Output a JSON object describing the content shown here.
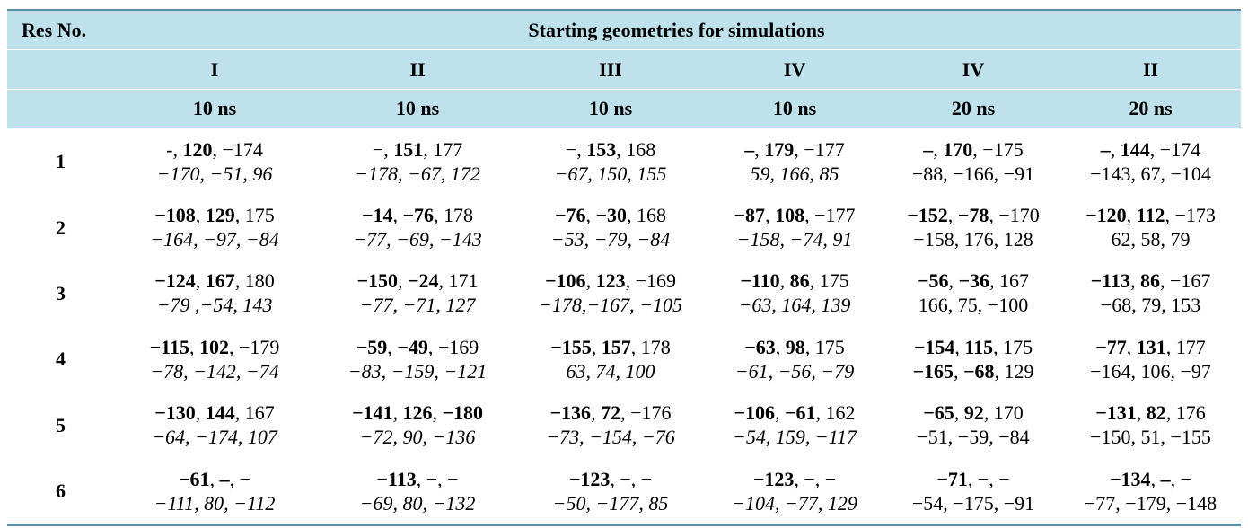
{
  "table": {
    "res_no_header": "Res No.",
    "title": "Starting geometries for simulations",
    "columns": [
      {
        "roman": "I",
        "time": "10 ns"
      },
      {
        "roman": "II",
        "time": "10 ns"
      },
      {
        "roman": "III",
        "time": "10 ns"
      },
      {
        "roman": "IV",
        "time": "10 ns"
      },
      {
        "roman": "IV",
        "time": "20 ns"
      },
      {
        "roman": "II",
        "time": "20 ns"
      }
    ],
    "rows": [
      {
        "res": "1",
        "cells": [
          {
            "line1": [
              [
                "-, ",
                false
              ],
              [
                "120",
                true
              ],
              [
                ", −174",
                false
              ]
            ],
            "line2": "−170, −51, 96",
            "italic": true
          },
          {
            "line1": [
              [
                "−, ",
                false
              ],
              [
                "151",
                true
              ],
              [
                ", 177",
                false
              ]
            ],
            "line2": "−178, −67, 172",
            "italic": true
          },
          {
            "line1": [
              [
                "−, ",
                false
              ],
              [
                "153",
                true
              ],
              [
                ", 168",
                false
              ]
            ],
            "line2": "−67, 150, 155",
            "italic": true
          },
          {
            "line1": [
              [
                "–",
                true
              ],
              [
                ", ",
                false
              ],
              [
                "179",
                true
              ],
              [
                ", −177",
                false
              ]
            ],
            "line2": "59, 166, 85",
            "italic": true
          },
          {
            "line1": [
              [
                "–",
                true
              ],
              [
                ", ",
                false
              ],
              [
                "170",
                true
              ],
              [
                ", −175",
                false
              ]
            ],
            "line2": "−88, −166, −91",
            "italic": false
          },
          {
            "line1": [
              [
                "–",
                true
              ],
              [
                ", ",
                false
              ],
              [
                "144",
                true
              ],
              [
                ", −174",
                false
              ]
            ],
            "line2": "−143, 67, −104",
            "italic": false
          }
        ]
      },
      {
        "res": "2",
        "cells": [
          {
            "line1": [
              [
                "−108",
                true
              ],
              [
                ", ",
                false
              ],
              [
                "129",
                true
              ],
              [
                ", 175",
                false
              ]
            ],
            "line2": "−164, −97, −84",
            "italic": true
          },
          {
            "line1": [
              [
                "−14",
                true
              ],
              [
                ", ",
                false
              ],
              [
                "−76",
                true
              ],
              [
                ", 178",
                false
              ]
            ],
            "line2": "−77, −69, −143",
            "italic": true
          },
          {
            "line1": [
              [
                "−76",
                true
              ],
              [
                ", ",
                false
              ],
              [
                "−30",
                true
              ],
              [
                ", 168",
                false
              ]
            ],
            "line2": "−53, −79, −84",
            "italic": true
          },
          {
            "line1": [
              [
                "−87",
                true
              ],
              [
                ", ",
                false
              ],
              [
                "108",
                true
              ],
              [
                ", −177",
                false
              ]
            ],
            "line2": "−158, −74, 91",
            "italic": true
          },
          {
            "line1": [
              [
                "−152",
                true
              ],
              [
                ", ",
                false
              ],
              [
                "−78",
                true
              ],
              [
                ", −170",
                false
              ]
            ],
            "line2": "−158, 176, 128",
            "italic": false
          },
          {
            "line1": [
              [
                "−120",
                true
              ],
              [
                ", ",
                false
              ],
              [
                "112",
                true
              ],
              [
                ", −173",
                false
              ]
            ],
            "line2": "62, 58, 79",
            "italic": false
          }
        ]
      },
      {
        "res": "3",
        "cells": [
          {
            "line1": [
              [
                "−124",
                true
              ],
              [
                ", ",
                false
              ],
              [
                "167",
                true
              ],
              [
                ", 180",
                false
              ]
            ],
            "line2": "−79 ,−54, 143",
            "italic": true
          },
          {
            "line1": [
              [
                "−150",
                true
              ],
              [
                ", ",
                false
              ],
              [
                "−24",
                true
              ],
              [
                ", 171",
                false
              ]
            ],
            "line2": "−77, −71, 127",
            "italic": true
          },
          {
            "line1": [
              [
                "−106",
                true
              ],
              [
                ", ",
                false
              ],
              [
                "123",
                true
              ],
              [
                ", −169",
                false
              ]
            ],
            "line2": "−178,−167, −105",
            "italic": true
          },
          {
            "line1": [
              [
                "−110",
                true
              ],
              [
                ", ",
                false
              ],
              [
                "86",
                true
              ],
              [
                ", 175",
                false
              ]
            ],
            "line2": "−63, 164, 139",
            "italic": true
          },
          {
            "line1": [
              [
                "−56",
                true
              ],
              [
                ", ",
                false
              ],
              [
                "−36",
                true
              ],
              [
                ", 167",
                false
              ]
            ],
            "line2": "166, 75, −100",
            "italic": false
          },
          {
            "line1": [
              [
                "−113",
                true
              ],
              [
                ", ",
                false
              ],
              [
                "86",
                true
              ],
              [
                ", −167",
                false
              ]
            ],
            "line2": "−68, 79, 153",
            "italic": false
          }
        ]
      },
      {
        "res": "4",
        "cells": [
          {
            "line1": [
              [
                "−115",
                true
              ],
              [
                ", ",
                false
              ],
              [
                "102",
                true
              ],
              [
                ", −179",
                false
              ]
            ],
            "line2": "−78, −142, −74",
            "italic": true
          },
          {
            "line1": [
              [
                "−59",
                true
              ],
              [
                ", ",
                false
              ],
              [
                "−49",
                true
              ],
              [
                ", −169",
                false
              ]
            ],
            "line2": "−83, −159, −121",
            "italic": true
          },
          {
            "line1": [
              [
                "−155",
                true
              ],
              [
                ", ",
                false
              ],
              [
                "157",
                true
              ],
              [
                ", 178",
                false
              ]
            ],
            "line2": "63, 74, 100",
            "italic": true
          },
          {
            "line1": [
              [
                "−63",
                true
              ],
              [
                ", ",
                false
              ],
              [
                "98",
                true
              ],
              [
                ", 175",
                false
              ]
            ],
            "line2": "−61, −56, −79",
            "italic": true
          },
          {
            "line1": [
              [
                "−154",
                true
              ],
              [
                ", ",
                false
              ],
              [
                "115",
                true
              ],
              [
                ", 175",
                false
              ]
            ],
            "line2_parts": [
              [
                "−165",
                true
              ],
              [
                ", ",
                false
              ],
              [
                "−68",
                true
              ],
              [
                ", 129",
                false
              ]
            ],
            "italic": false
          },
          {
            "line1": [
              [
                "−77",
                true
              ],
              [
                ", ",
                false
              ],
              [
                "131",
                true
              ],
              [
                ", 177",
                false
              ]
            ],
            "line2": "−164, 106, −97",
            "italic": false
          }
        ]
      },
      {
        "res": "5",
        "cells": [
          {
            "line1": [
              [
                "−130",
                true
              ],
              [
                ", ",
                false
              ],
              [
                "144",
                true
              ],
              [
                ", 167",
                false
              ]
            ],
            "line2": "−64, −174, 107",
            "italic": true
          },
          {
            "line1": [
              [
                "−141",
                true
              ],
              [
                ", ",
                false
              ],
              [
                "126",
                true
              ],
              [
                ", ",
                false
              ],
              [
                "−180",
                true
              ]
            ],
            "line2": "−72, 90, −136",
            "italic": true
          },
          {
            "line1": [
              [
                "−136",
                true
              ],
              [
                ", ",
                false
              ],
              [
                "72",
                true
              ],
              [
                ", −176",
                false
              ]
            ],
            "line2": "−73, −154, −76",
            "italic": true
          },
          {
            "line1": [
              [
                "−106",
                true
              ],
              [
                ", ",
                false
              ],
              [
                "−61",
                true
              ],
              [
                ", 162",
                false
              ]
            ],
            "line2": "−54, 159, −117",
            "italic": true
          },
          {
            "line1": [
              [
                "−65",
                true
              ],
              [
                ", ",
                false
              ],
              [
                "92",
                true
              ],
              [
                ", 170",
                false
              ]
            ],
            "line2": "−51, −59, −84",
            "italic": false
          },
          {
            "line1": [
              [
                "−131",
                true
              ],
              [
                ", ",
                false
              ],
              [
                "82",
                true
              ],
              [
                ", 176",
                false
              ]
            ],
            "line2": "−150, 51, −155",
            "italic": false
          }
        ]
      },
      {
        "res": "6",
        "cells": [
          {
            "line1": [
              [
                "−61",
                true
              ],
              [
                ", ",
                false
              ],
              [
                "–",
                true
              ],
              [
                ", −",
                false
              ]
            ],
            "line2": "−111, 80, −112",
            "italic": true
          },
          {
            "line1": [
              [
                "−113",
                true
              ],
              [
                ", −, −",
                false
              ]
            ],
            "line2": "−69, 80, −132",
            "italic": true
          },
          {
            "line1": [
              [
                "−123",
                true
              ],
              [
                ", −, −",
                false
              ]
            ],
            "line2": "−50, −177, 85",
            "italic": true
          },
          {
            "line1": [
              [
                "−123",
                true
              ],
              [
                ", −, −",
                false
              ]
            ],
            "line2": "−104, −77, 129",
            "italic": true
          },
          {
            "line1": [
              [
                "−71",
                true
              ],
              [
                ", −, −",
                false
              ]
            ],
            "line2": "−54, −175, −91",
            "italic": false
          },
          {
            "line1": [
              [
                "−134",
                true
              ],
              [
                ", ",
                false
              ],
              [
                "–",
                true
              ],
              [
                ", −",
                false
              ]
            ],
            "line2": "−77, −179, −148",
            "italic": false
          }
        ]
      }
    ]
  }
}
